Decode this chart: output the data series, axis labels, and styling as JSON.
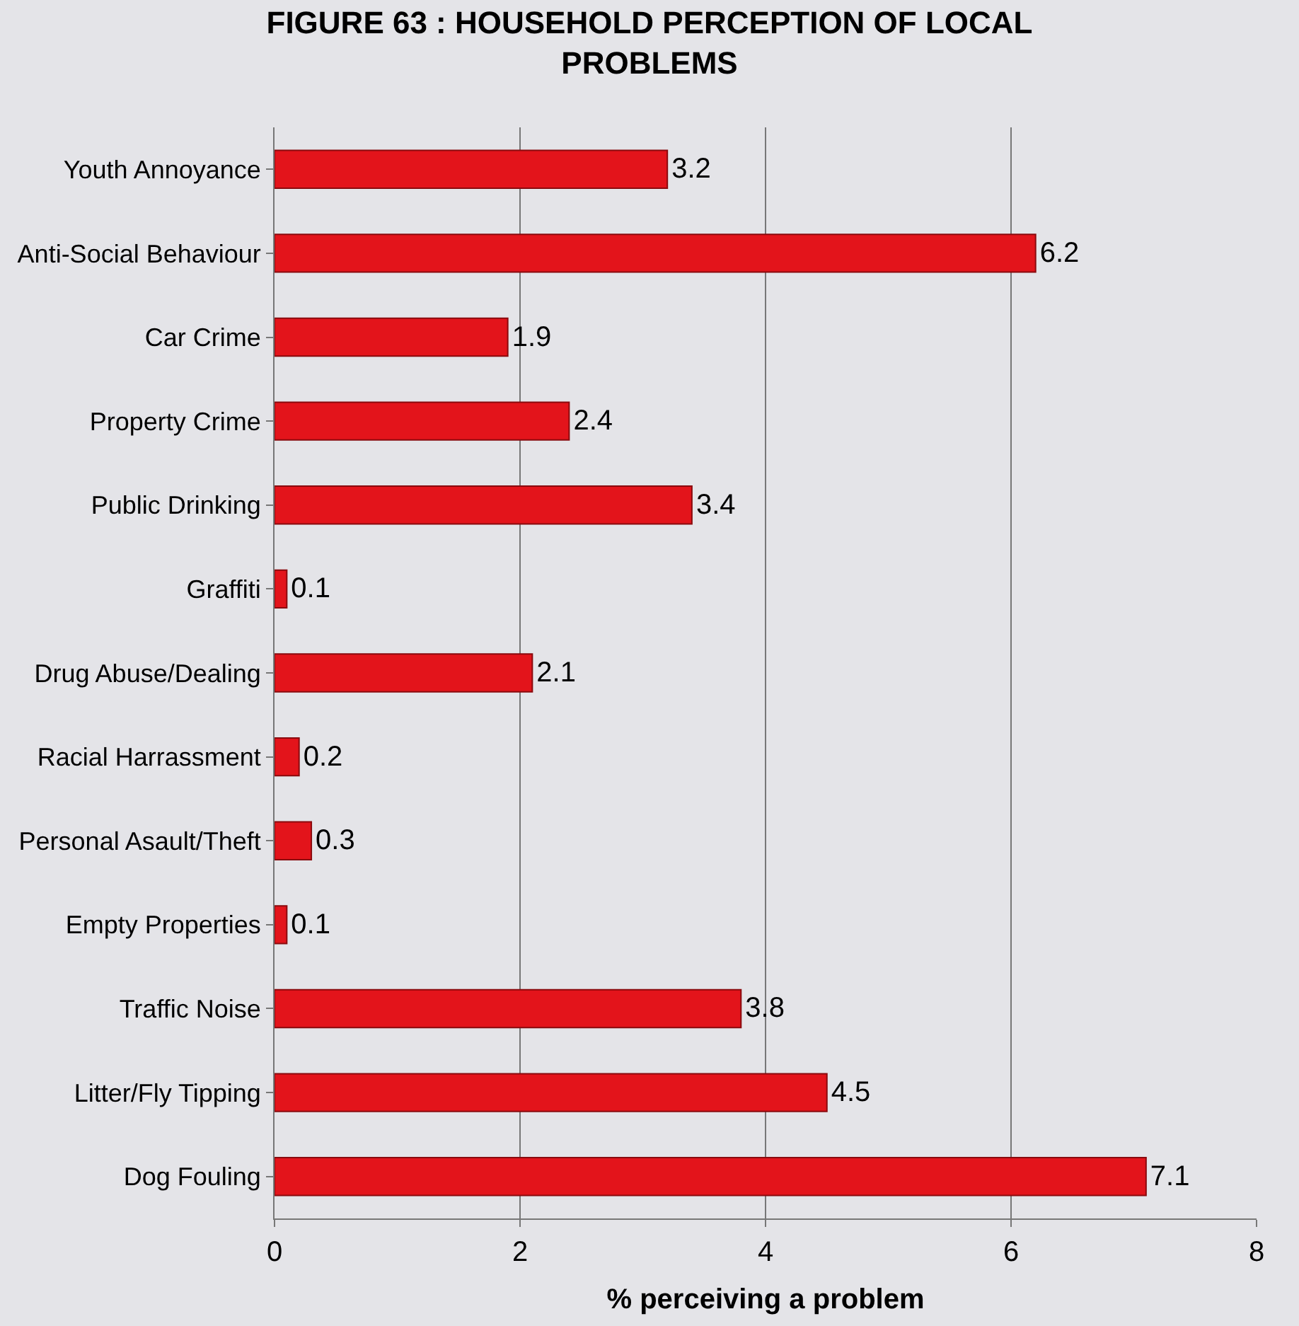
{
  "chart_data": {
    "type": "bar",
    "orientation": "horizontal",
    "title": "FIGURE 63 : HOUSEHOLD PERCEPTION OF LOCAL PROBLEMS",
    "xlabel": "% perceiving a problem",
    "categories": [
      "Youth Annoyance",
      "Anti-Social Behaviour",
      "Car Crime",
      "Property Crime",
      "Public Drinking",
      "Graffiti",
      "Drug Abuse/Dealing",
      "Racial Harrassment",
      "Personal Asault/Theft",
      "Empty Properties",
      "Traffic Noise",
      "Litter/Fly Tipping",
      "Dog Fouling"
    ],
    "values": [
      3.2,
      6.2,
      1.9,
      2.4,
      3.4,
      0.1,
      2.1,
      0.2,
      0.3,
      0.1,
      3.8,
      4.5,
      7.1
    ],
    "color": "#e3141b",
    "xlim": [
      0,
      8
    ],
    "xticks": [
      0,
      2,
      4,
      6,
      8
    ],
    "grid": "x",
    "data_labels": true
  }
}
